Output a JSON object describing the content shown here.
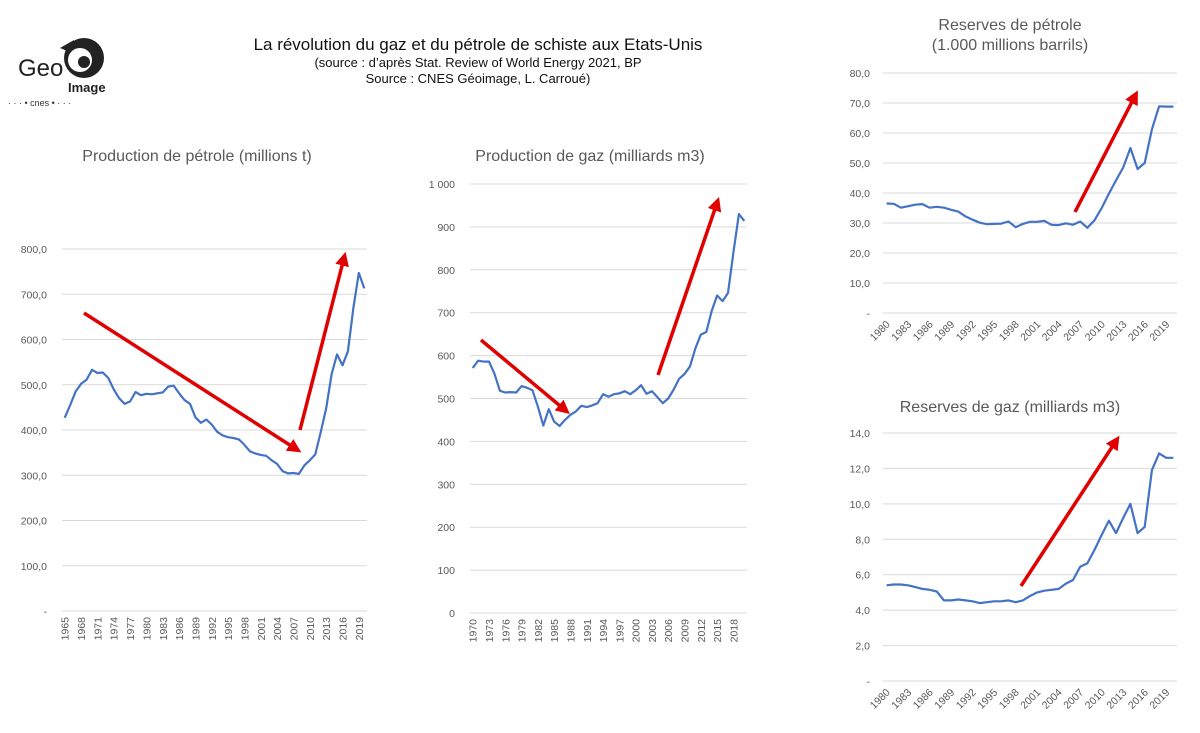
{
  "header": {
    "title": "La révolution du gaz et du pétrole de schiste aux Etats-Unis",
    "source_line1": "(source : d’après Stat. Review of World Energy 2021, BP",
    "source_line2": "Source : CNES Géoimage, L. Carroué)"
  },
  "logo": {
    "line1": "Geo",
    "line2": "Image",
    "line3": "· · · • cnes • · · ·"
  },
  "colors": {
    "series": "#4472c4",
    "arrow": "#e00000",
    "grid": "#d9d9d9",
    "text": "#595959"
  },
  "chart_data": [
    {
      "id": "oil-production",
      "type": "line",
      "title": "Production de pétrole (millions t)",
      "title_line2": "",
      "x_start": 1965,
      "x_label_step": 3,
      "x_label_rotation": "vertical",
      "ylim": [
        0,
        800
      ],
      "yticks": [
        0,
        100,
        200,
        300,
        400,
        500,
        600,
        700,
        800
      ],
      "ytick_labels": [
        "-",
        "100,0",
        "200,0",
        "300,0",
        "400,0",
        "500,0",
        "600,0",
        "700,0",
        "800,0"
      ],
      "grid": true,
      "values": [
        427,
        455,
        485,
        502,
        511,
        533,
        526,
        527,
        515,
        490,
        470,
        458,
        463,
        484,
        477,
        480,
        479,
        481,
        483,
        496,
        498,
        481,
        466,
        458,
        428,
        416,
        423,
        412,
        396,
        388,
        384,
        382,
        379,
        367,
        353,
        348,
        345,
        343,
        333,
        325,
        309,
        304,
        305,
        303,
        322,
        333,
        346,
        395,
        448,
        523,
        567,
        543,
        574,
        670,
        747,
        713
      ],
      "annotations": [
        "red arrow: decline 1969→2008",
        "red arrow: surge 2008→2016"
      ]
    },
    {
      "id": "gas-production",
      "type": "line",
      "title": "Production de gaz (milliards m3)",
      "title_line2": "",
      "x_start": 1970,
      "x_label_step": 3,
      "x_label_rotation": "vertical",
      "ylim": [
        0,
        1000
      ],
      "yticks": [
        0,
        100,
        200,
        300,
        400,
        500,
        600,
        700,
        800,
        900,
        1000
      ],
      "ytick_labels": [
        "0",
        "100",
        "200",
        "300",
        "400",
        "500",
        "600",
        "700",
        "800",
        "900",
        "1 000"
      ],
      "grid": true,
      "values": [
        571,
        588,
        586,
        586,
        558,
        518,
        514,
        515,
        514,
        529,
        525,
        519,
        481,
        437,
        475,
        446,
        436,
        450,
        462,
        470,
        483,
        480,
        484,
        489,
        510,
        504,
        510,
        512,
        517,
        510,
        519,
        531,
        511,
        517,
        503,
        489,
        500,
        521,
        546,
        557,
        575,
        617,
        649,
        655,
        704,
        740,
        727,
        746,
        840,
        930,
        914
      ],
      "annotations": [
        "red arrow: decline 1971→1987",
        "red arrow: surge 2004→2016"
      ]
    },
    {
      "id": "oil-reserves",
      "type": "line",
      "title": "Reserves de pétrole",
      "title_line2": "(1.000 millions barrils)",
      "x_start": 1980,
      "x_label_step": 3,
      "x_label_rotation": "diagonal",
      "ylim": [
        0,
        80
      ],
      "yticks": [
        0,
        10,
        20,
        30,
        40,
        50,
        60,
        70,
        80
      ],
      "ytick_labels": [
        "-",
        "10,0",
        "20,0",
        "30,0",
        "40,0",
        "50,0",
        "60,0",
        "70,0",
        "80,0"
      ],
      "grid": true,
      "values": [
        36.5,
        36.4,
        35.1,
        35.6,
        36.1,
        36.3,
        35.1,
        35.4,
        35.1,
        34.4,
        33.8,
        32.2,
        31.1,
        30.1,
        29.6,
        29.7,
        29.8,
        30.5,
        28.6,
        29.7,
        30.4,
        30.4,
        30.7,
        29.4,
        29.3,
        29.9,
        29.4,
        30.5,
        28.4,
        30.9,
        35.0,
        39.8,
        44.2,
        48.5,
        55.0,
        48.0,
        50.0,
        61.2,
        68.9,
        68.8,
        68.8
      ],
      "annotations": [
        "red arrow: surge 2006→2015"
      ]
    },
    {
      "id": "gas-reserves",
      "type": "line",
      "title": "Reserves de gaz (milliards m3)",
      "title_line2": "",
      "x_start": 1980,
      "x_label_step": 3,
      "x_label_rotation": "diagonal",
      "ylim": [
        0,
        14
      ],
      "yticks": [
        0,
        2,
        4,
        6,
        8,
        10,
        12,
        14
      ],
      "ytick_labels": [
        "-",
        "2,0",
        "4,0",
        "6,0",
        "8,0",
        "10,0",
        "12,0",
        "14,0"
      ],
      "grid": true,
      "values": [
        5.4,
        5.45,
        5.45,
        5.4,
        5.3,
        5.2,
        5.15,
        5.05,
        4.55,
        4.55,
        4.6,
        4.55,
        4.5,
        4.4,
        4.45,
        4.5,
        4.5,
        4.55,
        4.45,
        4.55,
        4.8,
        5.0,
        5.1,
        5.15,
        5.2,
        5.5,
        5.7,
        6.45,
        6.65,
        7.4,
        8.25,
        9.05,
        8.35,
        9.2,
        10.0,
        8.35,
        8.7,
        11.9,
        12.85,
        12.6,
        12.6
      ],
      "annotations": [
        "red arrow: surge 1998→2012"
      ]
    }
  ]
}
